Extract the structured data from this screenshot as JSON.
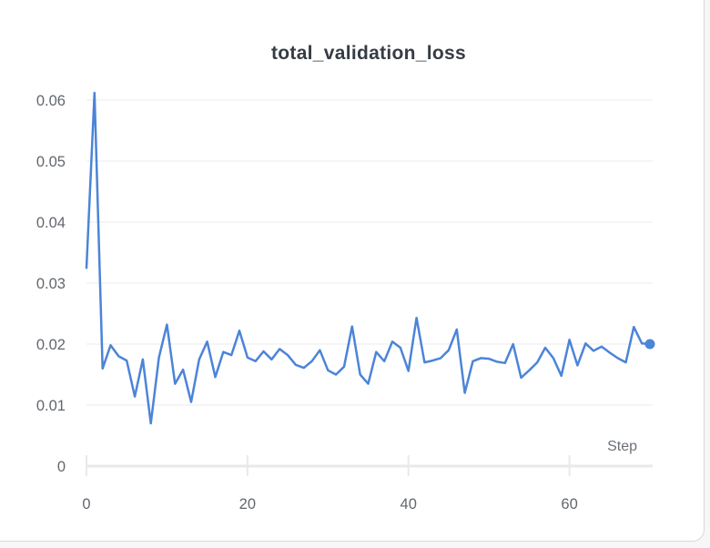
{
  "panel": {
    "background": "#f7f7f7",
    "card_background": "#ffffff",
    "card_border": "#d8d8d8"
  },
  "chart_data": {
    "type": "line",
    "title": "total_validation_loss",
    "xlabel": "Step",
    "ylabel": "",
    "legend": "none",
    "grid": "horizontal",
    "grid_color": "#efefef",
    "axis_color": "#e9e9e9",
    "tick_label_color": "#62676e",
    "title_color": "#363c44",
    "line_color": "#4c84d8",
    "line_width": 2.5,
    "end_point_marker": true,
    "end_point_radius": 5.5,
    "xlim": [
      0,
      71.5
    ],
    "ylim": [
      0,
      0.0622
    ],
    "x_tick_values": [
      0,
      20,
      40,
      60
    ],
    "x_tick_labels": [
      "0",
      "20",
      "40",
      "60"
    ],
    "y_tick_values": [
      0,
      0.01,
      0.02,
      0.03,
      0.04,
      0.05,
      0.06
    ],
    "y_tick_labels": [
      "0",
      "0.01",
      "0.02",
      "0.03",
      "0.04",
      "0.05",
      "0.06"
    ],
    "series": [
      {
        "name": "total_validation_loss",
        "x": [
          0,
          1,
          2,
          3,
          4,
          5,
          6,
          7,
          8,
          9,
          10,
          11,
          12,
          13,
          14,
          15,
          16,
          17,
          18,
          19,
          20,
          21,
          22,
          23,
          24,
          25,
          26,
          27,
          28,
          29,
          30,
          31,
          32,
          33,
          34,
          35,
          36,
          37,
          38,
          39,
          40,
          41,
          42,
          43,
          44,
          45,
          46,
          47,
          48,
          49,
          50,
          51,
          52,
          53,
          54,
          55,
          56,
          57,
          58,
          59,
          60,
          61,
          62,
          63,
          64,
          65,
          66,
          67,
          68,
          69,
          70
        ],
        "values": [
          0.0325,
          0.0612,
          0.016,
          0.0198,
          0.018,
          0.0173,
          0.0114,
          0.0175,
          0.007,
          0.0178,
          0.0232,
          0.0135,
          0.0158,
          0.0105,
          0.0175,
          0.0204,
          0.0146,
          0.0187,
          0.0182,
          0.0222,
          0.0178,
          0.0172,
          0.0188,
          0.0175,
          0.0192,
          0.0182,
          0.0166,
          0.0161,
          0.0172,
          0.019,
          0.0157,
          0.015,
          0.0163,
          0.0229,
          0.015,
          0.0135,
          0.0187,
          0.0172,
          0.0204,
          0.0194,
          0.0156,
          0.0243,
          0.017,
          0.0173,
          0.0177,
          0.019,
          0.0224,
          0.012,
          0.0172,
          0.0177,
          0.0176,
          0.0171,
          0.0169,
          0.02,
          0.0145,
          0.0157,
          0.017,
          0.0194,
          0.0177,
          0.0148,
          0.0207,
          0.0165,
          0.0201,
          0.0189,
          0.0196,
          0.0186,
          0.0177,
          0.017,
          0.0228,
          0.0201,
          0.02
        ]
      }
    ]
  }
}
